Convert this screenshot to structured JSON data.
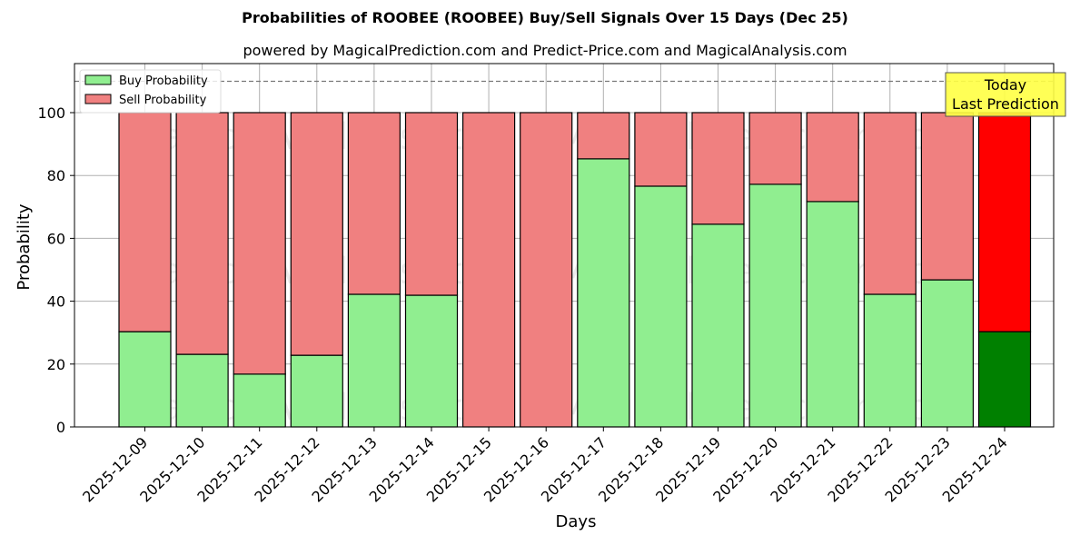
{
  "title": "Probabilities of ROOBEE (ROOBEE) Buy/Sell Signals Over 15 Days (Dec 25)",
  "subtitle": "powered by MagicalPrediction.com and Predict-Price.com and MagicalAnalysis.com",
  "legend": {
    "buy_label": "Buy Probability",
    "sell_label": "Sell Probability"
  },
  "annotation": {
    "line1": "Today",
    "line2": "Last Prediction"
  },
  "watermarks": [
    "MagicalAnalysis.com",
    "MagicalPrediction.com"
  ],
  "colors": {
    "buy": "#90ee90",
    "sell": "#f08080",
    "today_buy": "#008000",
    "today_sell": "#ff0000",
    "annotation_bg": "#ffff44"
  },
  "chart_data": {
    "type": "bar",
    "stacked": true,
    "title": "Probabilities of ROOBEE (ROOBEE) Buy/Sell Signals Over 15 Days (Dec 25)",
    "subtitle": "powered by MagicalPrediction.com and Predict-Price.com and MagicalAnalysis.com",
    "xlabel": "Days",
    "ylabel": "Probability",
    "ylim": [
      0,
      115
    ],
    "yticks": [
      0,
      20,
      40,
      60,
      80,
      100
    ],
    "reference_line": 110,
    "grid": true,
    "legend_position": "upper left",
    "categories": [
      "2025-12-09",
      "2025-12-10",
      "2025-12-11",
      "2025-12-12",
      "2025-12-13",
      "2025-12-14",
      "2025-12-15",
      "2025-12-16",
      "2025-12-17",
      "2025-12-18",
      "2025-12-19",
      "2025-12-20",
      "2025-12-21",
      "2025-12-22",
      "2025-12-23",
      "2025-12-24"
    ],
    "series": [
      {
        "name": "Buy Probability",
        "values": [
          30.3,
          23.1,
          16.8,
          22.8,
          42.2,
          41.9,
          0,
          0,
          85.3,
          76.6,
          64.5,
          77.2,
          71.7,
          42.2,
          46.8,
          30.3
        ]
      },
      {
        "name": "Sell Probability",
        "values": [
          69.7,
          76.9,
          83.2,
          77.2,
          57.8,
          58.1,
          100,
          100,
          14.7,
          23.4,
          35.5,
          22.8,
          28.3,
          57.8,
          53.2,
          69.7
        ]
      }
    ],
    "highlight_last": true
  }
}
